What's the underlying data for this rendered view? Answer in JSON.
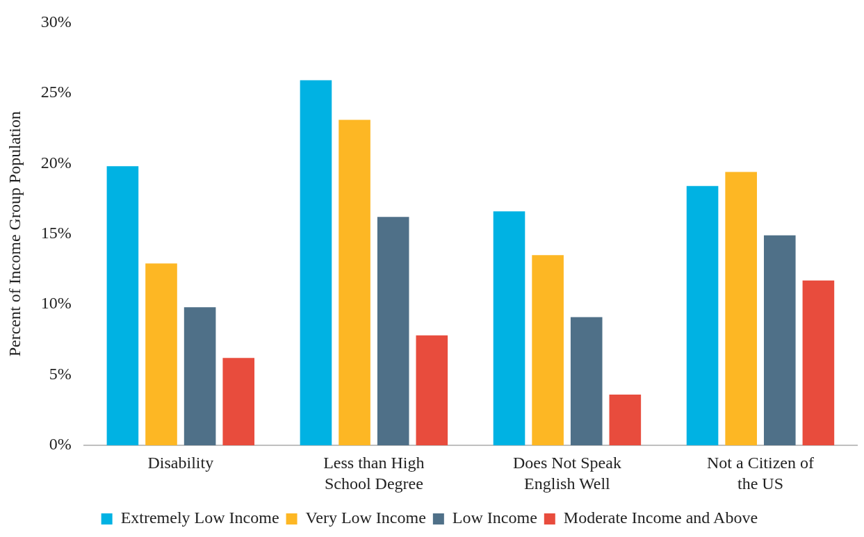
{
  "chart_data": {
    "type": "bar",
    "ylabel": "Percent of Income Group Population",
    "categories": [
      "Disability",
      "Less than High School Degree",
      "Does Not Speak English Well",
      "Not a Citizen of the US"
    ],
    "series": [
      {
        "name": "Extremely Low Income",
        "color": "#00b2e3",
        "values": [
          19.8,
          25.9,
          16.6,
          18.4
        ]
      },
      {
        "name": "Very Low Income",
        "color": "#fdb724",
        "values": [
          12.9,
          23.1,
          13.5,
          19.4
        ]
      },
      {
        "name": "Low Income",
        "color": "#4f7088",
        "values": [
          9.8,
          16.2,
          9.1,
          14.9
        ]
      },
      {
        "name": "Moderate Income and Above",
        "color": "#e84c3d",
        "values": [
          6.2,
          7.8,
          3.6,
          11.7
        ]
      }
    ],
    "ylim": [
      0,
      30
    ],
    "yticks": [
      {
        "value": 0,
        "label": "0%"
      },
      {
        "value": 5,
        "label": "5%"
      },
      {
        "value": 10,
        "label": "10%"
      },
      {
        "value": 15,
        "label": "15%"
      },
      {
        "value": 20,
        "label": "20%"
      },
      {
        "value": 25,
        "label": "25%"
      },
      {
        "value": 30,
        "label": "30%"
      }
    ],
    "grid": false,
    "legend": "bottom"
  }
}
